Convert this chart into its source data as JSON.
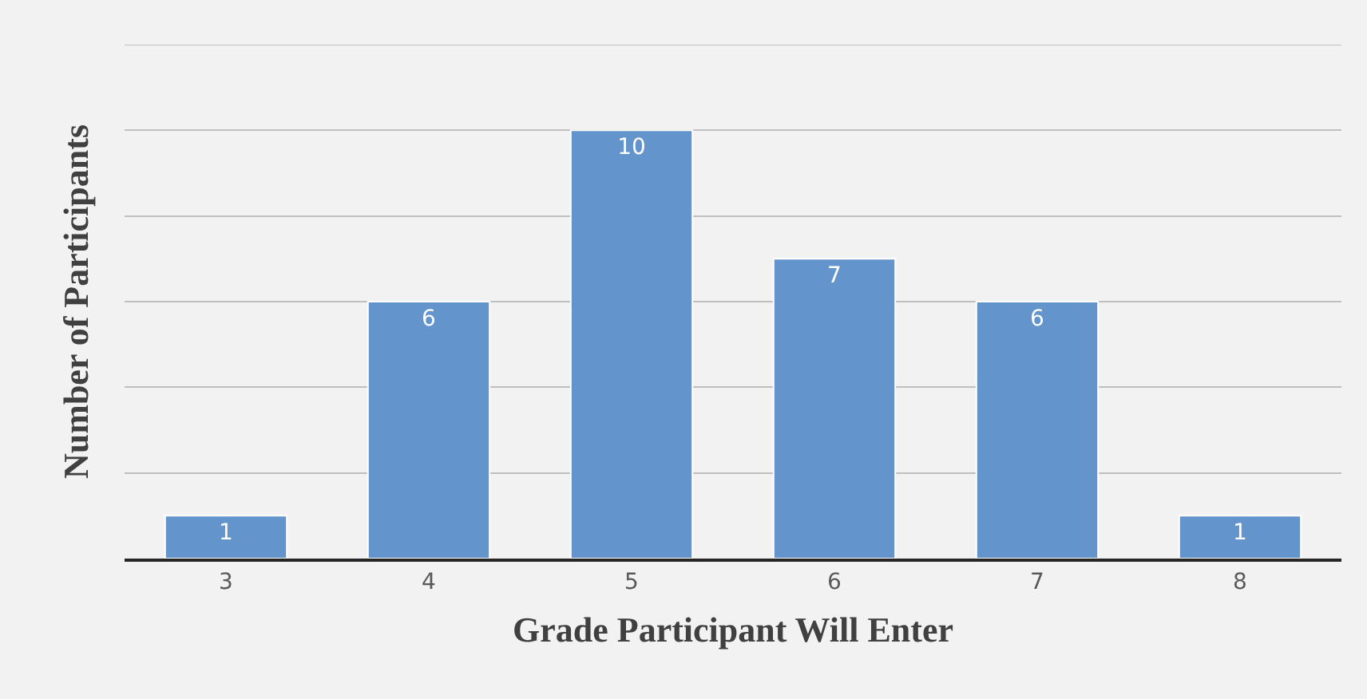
{
  "chart_data": {
    "type": "bar",
    "xlabel": "Grade Participant Will Enter",
    "ylabel": "Number of Participants",
    "categories": [
      "3",
      "4",
      "5",
      "6",
      "7",
      "8"
    ],
    "values": [
      1,
      6,
      10,
      7,
      6,
      1
    ],
    "color": "#6394cc",
    "ylim": [
      0,
      12
    ],
    "yticks": [
      {
        "value": 0,
        "label": null
      },
      {
        "value": 2,
        "label": null
      },
      {
        "value": 4,
        "label": null
      },
      {
        "value": 6,
        "label": null
      },
      {
        "value": 8,
        "label": null
      },
      {
        "value": 10,
        "label": null
      },
      {
        "value": 12,
        "label": null
      }
    ],
    "grid": "y",
    "tick_labels": "x",
    "data_labels": true
  }
}
